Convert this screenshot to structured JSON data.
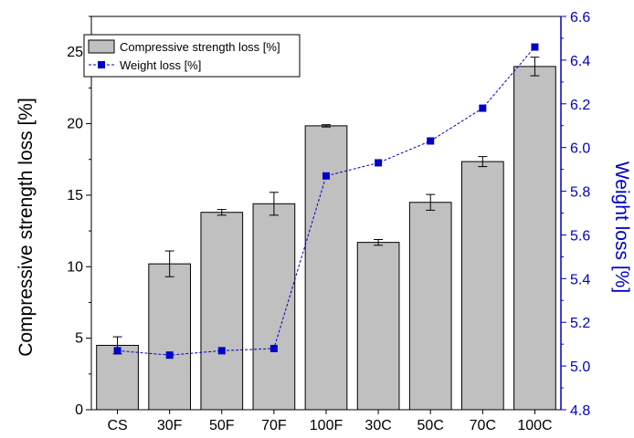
{
  "chart_data": {
    "type": "bar",
    "categories": [
      "CS",
      "30F",
      "50F",
      "70F",
      "100F",
      "30C",
      "50C",
      "70C",
      "100C"
    ],
    "series": [
      {
        "name": "Compressive strength loss [%]",
        "chart_type": "bar",
        "axis": "left",
        "values": [
          4.5,
          10.2,
          13.8,
          14.4,
          19.85,
          11.7,
          14.5,
          17.35,
          24.0
        ],
        "error": [
          0.6,
          0.9,
          0.2,
          0.8,
          0.08,
          0.2,
          0.55,
          0.35,
          0.65
        ],
        "fill_color": "#c0c0c0",
        "stroke_color": "#000000"
      },
      {
        "name": "Weight loss [%]",
        "chart_type": "line",
        "axis": "right",
        "values": [
          5.07,
          5.05,
          5.07,
          5.08,
          5.87,
          5.93,
          6.03,
          6.18,
          6.46
        ],
        "color": "#0000c8",
        "marker": "square",
        "line_style": "dashed"
      }
    ],
    "ylabel": "Compressive strength loss [%]",
    "ylabel_right": "Weight loss [%]",
    "ylim": [
      0,
      27.5
    ],
    "ylim_right": [
      4.8,
      6.6
    ],
    "yticks": [
      0,
      5,
      10,
      15,
      20,
      25
    ],
    "yticks_right": [
      4.8,
      5.0,
      5.2,
      5.4,
      5.6,
      5.8,
      6.0,
      6.2,
      6.4,
      6.6
    ],
    "right_axis_color": "#0000c8",
    "legend_position": "top-left",
    "grid": false
  }
}
